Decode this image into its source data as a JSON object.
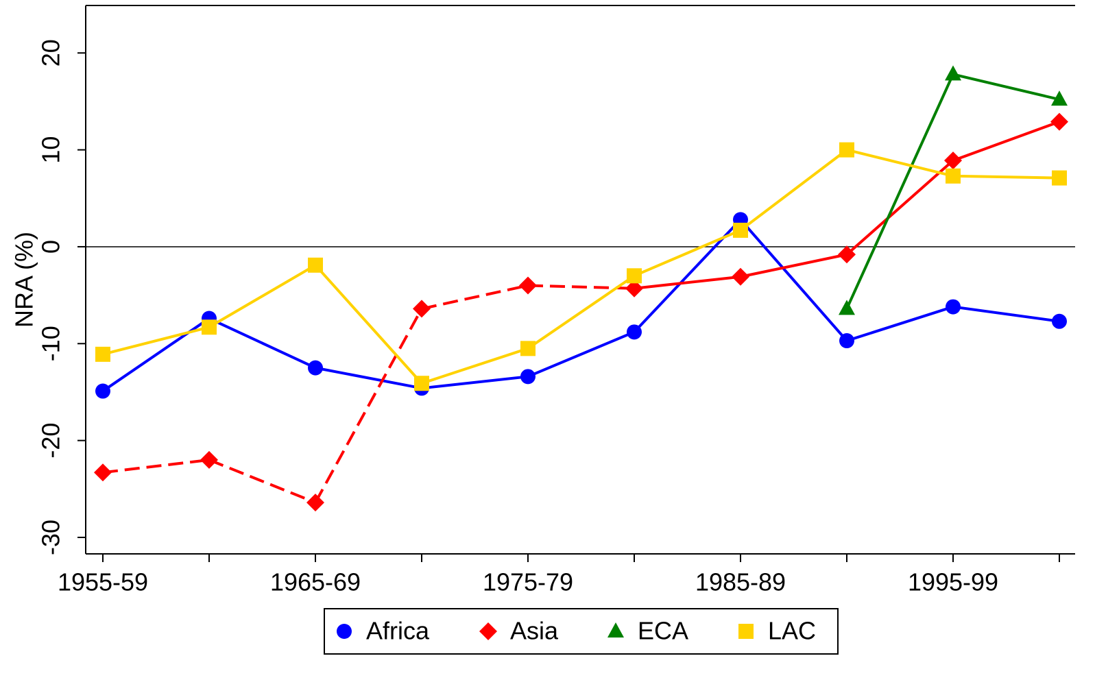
{
  "chart_data": {
    "type": "line",
    "y_label": "NRA (%)",
    "categories": [
      "1955-59",
      null,
      "1965-69",
      null,
      "1975-79",
      null,
      "1985-89",
      null,
      "1995-99",
      null
    ],
    "series": [
      {
        "name": "Africa",
        "color": "#0000ff",
        "marker": "circle",
        "values": [
          -14.9,
          -7.4,
          -12.5,
          -14.6,
          -13.4,
          -8.8,
          2.8,
          -9.7,
          -6.2,
          -7.7
        ]
      },
      {
        "name": "Asia",
        "color": "#ff0000",
        "marker": "diamond",
        "dashed_until_index": 5,
        "values": [
          -23.3,
          -22.0,
          -26.4,
          -6.4,
          -4.0,
          -4.3,
          -3.1,
          -0.8,
          8.9,
          12.9
        ]
      },
      {
        "name": "ECA",
        "color": "#008000",
        "marker": "triangle",
        "values": [
          null,
          null,
          null,
          null,
          null,
          null,
          null,
          -6.4,
          17.8,
          15.2
        ]
      },
      {
        "name": "LAC",
        "color": "#ffd200",
        "marker": "square",
        "values": [
          -11.1,
          -8.3,
          -1.9,
          -14.1,
          -10.5,
          -3.0,
          1.7,
          10.0,
          7.3,
          7.1
        ]
      }
    ],
    "ylim": [
      -31.7,
      24.9
    ],
    "yticks": [
      -30,
      -20,
      -10,
      0,
      10,
      20
    ],
    "reference_line": 0,
    "legend": "bottom"
  }
}
